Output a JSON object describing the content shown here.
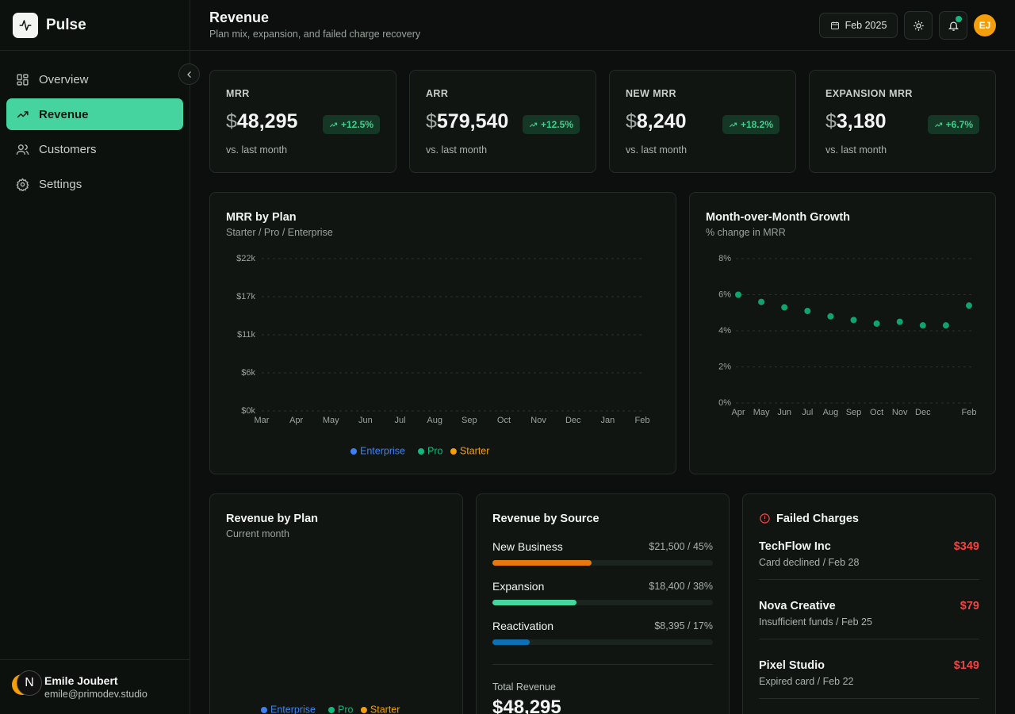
{
  "sidebar": {
    "brand": "Pulse",
    "nav": [
      "Overview",
      "Revenue",
      "Customers",
      "Settings"
    ],
    "active": 1,
    "user": {
      "initial": "N",
      "name": "Emile Joubert",
      "email": "emile@primodev.studio"
    }
  },
  "header": {
    "title": "Revenue",
    "subtitle": "Plan mix, expansion, and failed charge recovery",
    "date": "Feb 2025",
    "avatar": "EJ"
  },
  "kpis": [
    {
      "label": "MRR",
      "currency": "$",
      "value": "48,295",
      "delta": "+12.5%",
      "note": "vs. last month"
    },
    {
      "label": "ARR",
      "currency": "$",
      "value": "579,540",
      "delta": "+12.5%",
      "note": "vs. last month"
    },
    {
      "label": "NEW MRR",
      "currency": "$",
      "value": "8,240",
      "delta": "+18.2%",
      "note": "vs. last month"
    },
    {
      "label": "EXPANSION MRR",
      "currency": "$",
      "value": "3,180",
      "delta": "+6.7%",
      "note": "vs. last month"
    }
  ],
  "charts": [
    {
      "type": "area",
      "title": "MRR by Plan",
      "subtitle": "Starter / Pro / Enterprise",
      "categories": [
        "Mar",
        "Apr",
        "May",
        "Jun",
        "Jul",
        "Aug",
        "Sep",
        "Oct",
        "Nov",
        "Dec",
        "Jan",
        "Feb"
      ],
      "ylim": [
        0,
        22000
      ],
      "yticks": [
        {
          "value": 0,
          "label": "$0k"
        },
        {
          "value": 5500,
          "label": "$6k"
        },
        {
          "value": 11000,
          "label": "$11k"
        },
        {
          "value": 16500,
          "label": "$17k"
        },
        {
          "value": 22000,
          "label": "$22k"
        }
      ],
      "grid": true,
      "series": [
        {
          "name": "Enterprise",
          "color": "#3b82f6"
        },
        {
          "name": "Pro",
          "color": "#10b981"
        },
        {
          "name": "Starter",
          "color": "#f59e0b"
        }
      ]
    },
    {
      "type": "scatter",
      "title": "Month-over-Month Growth",
      "subtitle": "% change in MRR",
      "categories": [
        "Apr",
        "May",
        "Jun",
        "Jul",
        "Aug",
        "Sep",
        "Oct",
        "Nov",
        "Dec",
        null,
        "Feb"
      ],
      "values": [
        6.0,
        5.6,
        5.3,
        5.1,
        4.8,
        4.6,
        4.4,
        4.5,
        4.3,
        4.3,
        5.4
      ],
      "color": "#10a36e",
      "ylim": [
        0,
        8
      ],
      "yticks": [
        {
          "value": 0,
          "label": "0%"
        },
        {
          "value": 2,
          "label": "2%"
        },
        {
          "value": 4,
          "label": "4%"
        },
        {
          "value": 6,
          "label": "6%"
        },
        {
          "value": 8,
          "label": "8%"
        }
      ],
      "grid": true
    },
    {
      "type": "pie",
      "title": "Revenue by Plan",
      "subtitle": "Current month",
      "series": [
        {
          "name": "Enterprise",
          "color": "#3b82f6"
        },
        {
          "name": "Pro",
          "color": "#10b981"
        },
        {
          "name": "Starter",
          "color": "#f59e0b"
        }
      ]
    }
  ],
  "sources": {
    "title": "Revenue by Source",
    "items": [
      {
        "name": "New Business",
        "label": "$21,500 / 45%",
        "percent": 45,
        "color": "#e8780c"
      },
      {
        "name": "Expansion",
        "label": "$18,400 / 38%",
        "percent": 38,
        "color": "#45d6a0"
      },
      {
        "name": "Reactivation",
        "label": "$8,395 / 17%",
        "percent": 17,
        "color": "#0f6fb5"
      }
    ],
    "total_label": "Total Revenue",
    "total": "$48,295"
  },
  "failed": {
    "title": "Failed Charges",
    "items": [
      {
        "name": "TechFlow Inc",
        "detail": "Card declined / Feb 28",
        "amount": "$349"
      },
      {
        "name": "Nova Creative",
        "detail": "Insufficient funds / Feb 25",
        "amount": "$79"
      },
      {
        "name": "Pixel Studio",
        "detail": "Expired card / Feb 22",
        "amount": "$149"
      }
    ]
  }
}
